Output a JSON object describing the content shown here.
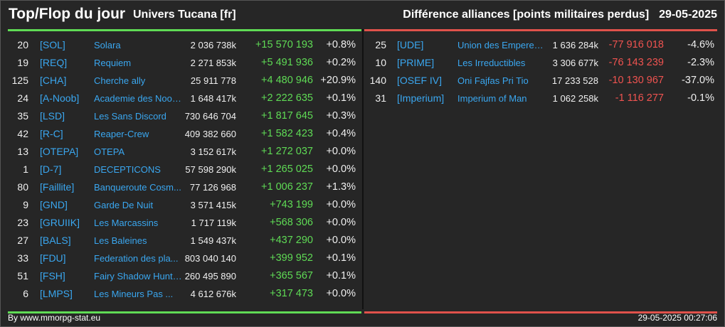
{
  "header": {
    "title": "Top/Flop du jour",
    "subtitle": "Univers Tucana [fr]",
    "right_title": "Différence alliances [points militaires perdus]",
    "date": "29-05-2025"
  },
  "colors": {
    "positive": "#5fdb55",
    "negative": "#ef5350",
    "tag": "#3aa7f0",
    "background": "#262626"
  },
  "top": [
    {
      "rank": "20",
      "tag": "[SOL]",
      "name": "Solara",
      "points": "2 036 738k",
      "diff": "+15 570 193",
      "pct": "+0.8%"
    },
    {
      "rank": "19",
      "tag": "[REQ]",
      "name": "Requiem",
      "points": "2 271 853k",
      "diff": "+5 491 936",
      "pct": "+0.2%"
    },
    {
      "rank": "125",
      "tag": "[CHA]",
      "name": "Cherche ally",
      "points": "25 911 778",
      "diff": "+4 480 946",
      "pct": "+20.9%"
    },
    {
      "rank": "24",
      "tag": "[A-Noob]",
      "name": "Academie des Noob...",
      "points": "1 648 417k",
      "diff": "+2 222 635",
      "pct": "+0.1%"
    },
    {
      "rank": "35",
      "tag": "[LSD]",
      "name": "Les Sans Discord",
      "points": "730 646 704",
      "diff": "+1 817 645",
      "pct": "+0.3%"
    },
    {
      "rank": "42",
      "tag": "[R-C]",
      "name": "Reaper-Crew",
      "points": "409 382 660",
      "diff": "+1 582 423",
      "pct": "+0.4%"
    },
    {
      "rank": "13",
      "tag": "[OTEPA]",
      "name": "OTEPA",
      "points": "3 152 617k",
      "diff": "+1 272 037",
      "pct": "+0.0%"
    },
    {
      "rank": "1",
      "tag": "[D-7]",
      "name": "DECEPTICONS",
      "points": "57 598 290k",
      "diff": "+1 265 025",
      "pct": "+0.0%"
    },
    {
      "rank": "80",
      "tag": "[Faillite]",
      "name": "Banqueroute Cosm...",
      "points": "77 126 968",
      "diff": "+1 006 237",
      "pct": "+1.3%"
    },
    {
      "rank": "9",
      "tag": "[GND]",
      "name": "Garde De Nuit",
      "points": "3 571 415k",
      "diff": "+743 199",
      "pct": "+0.0%"
    },
    {
      "rank": "23",
      "tag": "[GRUIIK]",
      "name": "Les Marcassins",
      "points": "1 717 119k",
      "diff": "+568 306",
      "pct": "+0.0%"
    },
    {
      "rank": "27",
      "tag": "[BALS]",
      "name": "Les Baleines",
      "points": "1 549 437k",
      "diff": "+437 290",
      "pct": "+0.0%"
    },
    {
      "rank": "33",
      "tag": "[FDU]",
      "name": "Federation des pla...",
      "points": "803 040 140",
      "diff": "+399 952",
      "pct": "+0.1%"
    },
    {
      "rank": "51",
      "tag": "[FSH]",
      "name": "Fairy Shadow Hunte...",
      "points": "260 495 890",
      "diff": "+365 567",
      "pct": "+0.1%"
    },
    {
      "rank": "6",
      "tag": "[LMPS]",
      "name": "Les Mineurs Pas ...",
      "points": "4 612 676k",
      "diff": "+317 473",
      "pct": "+0.0%"
    }
  ],
  "flop": [
    {
      "rank": "25",
      "tag": "[UDE]",
      "name": "Union des Empereur...",
      "points": "1 636 284k",
      "diff": "-77 916 018",
      "pct": "-4.6%"
    },
    {
      "rank": "10",
      "tag": "[PRIME]",
      "name": "Les Irreductibles",
      "points": "3 306 677k",
      "diff": "-76 143 239",
      "pct": "-2.3%"
    },
    {
      "rank": "140",
      "tag": "[OSEF IV]",
      "name": "Oni Fajfas Pri Tio",
      "points": "17 233 528",
      "diff": "-10 130 967",
      "pct": "-37.0%"
    },
    {
      "rank": "31",
      "tag": "[Imperium]",
      "name": "Imperium of Man",
      "points": "1 062 258k",
      "diff": "-1 116 277",
      "pct": "-0.1%"
    }
  ],
  "footer": {
    "source": "By www.mmorpg-stat.eu",
    "timestamp": "29-05-2025 00:27:06"
  }
}
